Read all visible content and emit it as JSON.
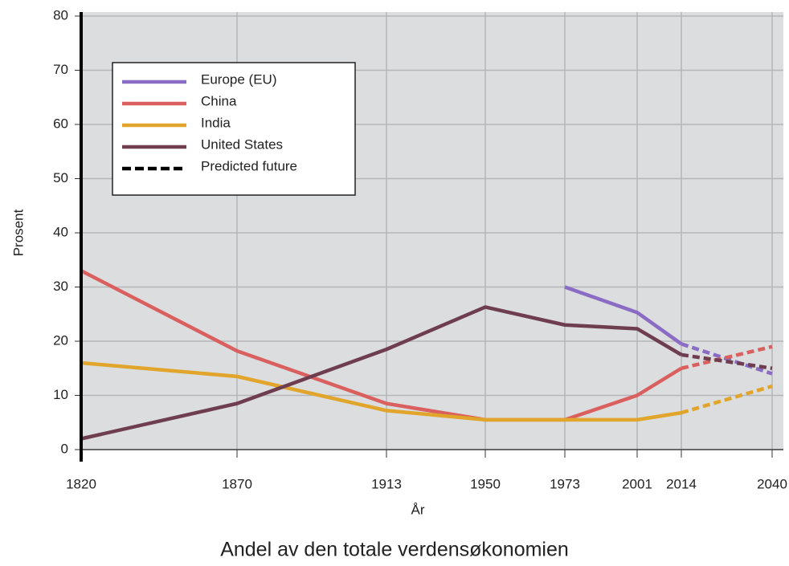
{
  "chart_data": {
    "type": "line",
    "caption": "Andel av den totale verdensøkonomien",
    "xlabel": "År",
    "ylabel": "Prosent",
    "categories": [
      "1820",
      "1870",
      "1913",
      "1950",
      "1973",
      "2001",
      "2014",
      "2040"
    ],
    "series": [
      {
        "name": "Europe (EU)",
        "color": "#8a6cc4",
        "values": [
          null,
          null,
          null,
          null,
          30,
          25.3,
          19.5,
          14
        ]
      },
      {
        "name": "China",
        "color": "#d9605e",
        "values": [
          33,
          18.2,
          8.5,
          5.5,
          5.5,
          10,
          15,
          19
        ]
      },
      {
        "name": "India",
        "color": "#e0a52a",
        "values": [
          16,
          13.5,
          7.2,
          5.5,
          5.5,
          5.5,
          6.8,
          11.7
        ]
      },
      {
        "name": "United States",
        "color": "#6e3d4e",
        "values": [
          2,
          8.5,
          18.5,
          26.3,
          23,
          22.3,
          17.5,
          15
        ]
      }
    ],
    "forecast_name": "Predicted future",
    "forecast_from": "2014",
    "ylim": [
      0,
      80
    ],
    "yticks": [
      0,
      10,
      20,
      30,
      40,
      50,
      60,
      70,
      80
    ],
    "grid": true
  }
}
